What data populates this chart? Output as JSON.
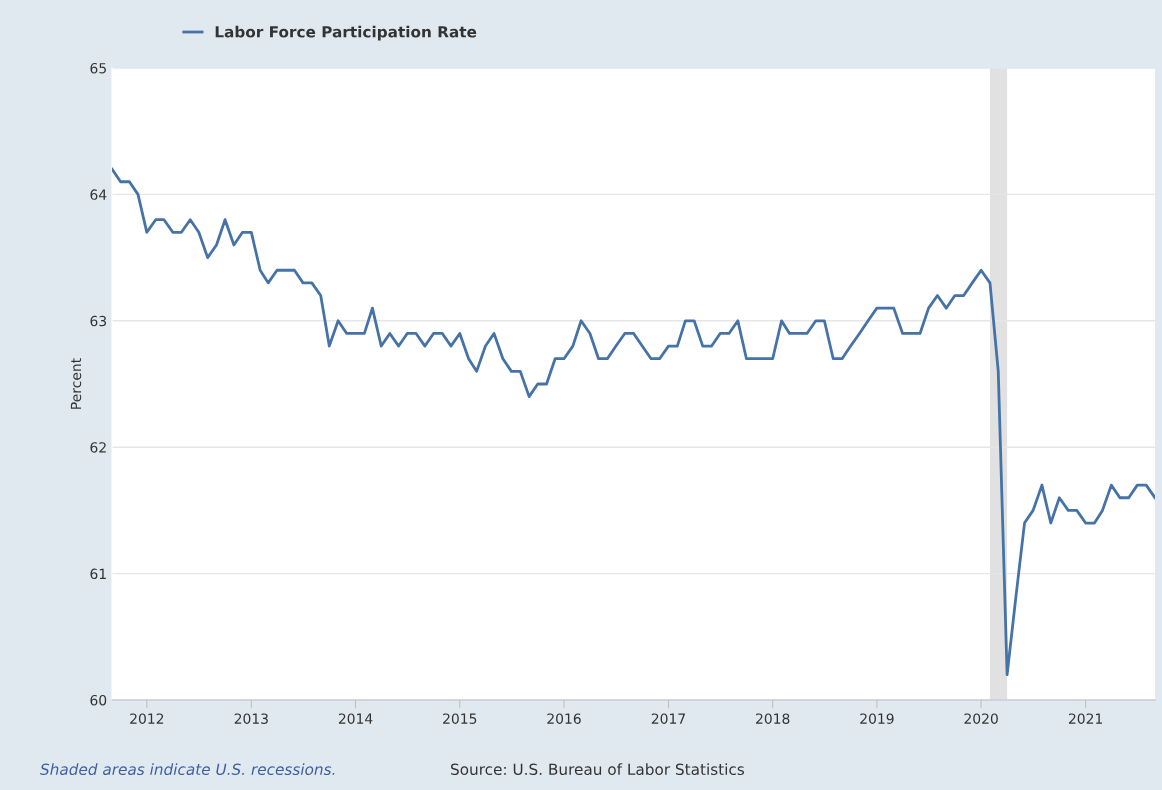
{
  "chart_data": {
    "type": "line",
    "ylabel": "Percent",
    "x": [
      "2011-09",
      "2011-10",
      "2011-11",
      "2011-12",
      "2012-01",
      "2012-02",
      "2012-03",
      "2012-04",
      "2012-05",
      "2012-06",
      "2012-07",
      "2012-08",
      "2012-09",
      "2012-10",
      "2012-11",
      "2012-12",
      "2013-01",
      "2013-02",
      "2013-03",
      "2013-04",
      "2013-05",
      "2013-06",
      "2013-07",
      "2013-08",
      "2013-09",
      "2013-10",
      "2013-11",
      "2013-12",
      "2014-01",
      "2014-02",
      "2014-03",
      "2014-04",
      "2014-05",
      "2014-06",
      "2014-07",
      "2014-08",
      "2014-09",
      "2014-10",
      "2014-11",
      "2014-12",
      "2015-01",
      "2015-02",
      "2015-03",
      "2015-04",
      "2015-05",
      "2015-06",
      "2015-07",
      "2015-08",
      "2015-09",
      "2015-10",
      "2015-11",
      "2015-12",
      "2016-01",
      "2016-02",
      "2016-03",
      "2016-04",
      "2016-05",
      "2016-06",
      "2016-07",
      "2016-08",
      "2016-09",
      "2016-10",
      "2016-11",
      "2016-12",
      "2017-01",
      "2017-02",
      "2017-03",
      "2017-04",
      "2017-05",
      "2017-06",
      "2017-07",
      "2017-08",
      "2017-09",
      "2017-10",
      "2017-11",
      "2017-12",
      "2018-01",
      "2018-02",
      "2018-03",
      "2018-04",
      "2018-05",
      "2018-06",
      "2018-07",
      "2018-08",
      "2018-09",
      "2018-10",
      "2018-11",
      "2018-12",
      "2019-01",
      "2019-02",
      "2019-03",
      "2019-04",
      "2019-05",
      "2019-06",
      "2019-07",
      "2019-08",
      "2019-09",
      "2019-10",
      "2019-11",
      "2019-12",
      "2020-01",
      "2020-02",
      "2020-03",
      "2020-04",
      "2020-05",
      "2020-06",
      "2020-07",
      "2020-08",
      "2020-09",
      "2020-10",
      "2020-11",
      "2020-12",
      "2021-01",
      "2021-02",
      "2021-03",
      "2021-04",
      "2021-05",
      "2021-06",
      "2021-07",
      "2021-08",
      "2021-09"
    ],
    "series": [
      {
        "name": "Labor Force Participation Rate",
        "color": "#4572a7",
        "values": [
          64.2,
          64.1,
          64.1,
          64.0,
          63.7,
          63.8,
          63.8,
          63.7,
          63.7,
          63.8,
          63.7,
          63.5,
          63.6,
          63.8,
          63.6,
          63.7,
          63.7,
          63.4,
          63.3,
          63.4,
          63.4,
          63.4,
          63.3,
          63.3,
          63.2,
          62.8,
          63.0,
          62.9,
          62.9,
          62.9,
          63.1,
          62.8,
          62.9,
          62.8,
          62.9,
          62.9,
          62.8,
          62.9,
          62.9,
          62.8,
          62.9,
          62.7,
          62.6,
          62.8,
          62.9,
          62.7,
          62.6,
          62.6,
          62.4,
          62.5,
          62.5,
          62.7,
          62.7,
          62.8,
          63.0,
          62.9,
          62.7,
          62.7,
          62.8,
          62.9,
          62.9,
          62.8,
          62.7,
          62.7,
          62.8,
          62.8,
          63.0,
          63.0,
          62.8,
          62.8,
          62.9,
          62.9,
          63.0,
          62.7,
          62.7,
          62.7,
          62.7,
          63.0,
          62.9,
          62.9,
          62.9,
          63.0,
          63.0,
          62.7,
          62.7,
          62.8,
          62.9,
          63.0,
          63.1,
          63.1,
          63.1,
          62.9,
          62.9,
          62.9,
          63.1,
          63.2,
          63.1,
          63.2,
          63.2,
          63.3,
          63.4,
          63.3,
          62.6,
          60.2,
          60.8,
          61.4,
          61.5,
          61.7,
          61.4,
          61.6,
          61.5,
          61.5,
          61.4,
          61.4,
          61.5,
          61.7,
          61.6,
          61.6,
          61.7,
          61.7,
          61.6
        ]
      }
    ],
    "xlim": [
      "2011-09",
      "2021-09"
    ],
    "xticks": [
      {
        "value": "2012-01",
        "label": "2012"
      },
      {
        "value": "2013-01",
        "label": "2013"
      },
      {
        "value": "2014-01",
        "label": "2014"
      },
      {
        "value": "2015-01",
        "label": "2015"
      },
      {
        "value": "2016-01",
        "label": "2016"
      },
      {
        "value": "2017-01",
        "label": "2017"
      },
      {
        "value": "2018-01",
        "label": "2018"
      },
      {
        "value": "2019-01",
        "label": "2019"
      },
      {
        "value": "2020-01",
        "label": "2020"
      },
      {
        "value": "2021-01",
        "label": "2021"
      }
    ],
    "ylim": [
      60,
      65
    ],
    "yticks": [
      60,
      61,
      62,
      63,
      64,
      65
    ],
    "grid": "y",
    "legend": "top left",
    "line_style": "solid",
    "marker": "none",
    "bands": [
      {
        "axis": "x",
        "from": "2020-02",
        "to": "2020-04",
        "color": "#e1e1e1"
      }
    ],
    "annotations": [
      "Shaded areas indicate U.S. recessions.",
      "Source: U.S. Bureau of Labor Statistics"
    ]
  }
}
